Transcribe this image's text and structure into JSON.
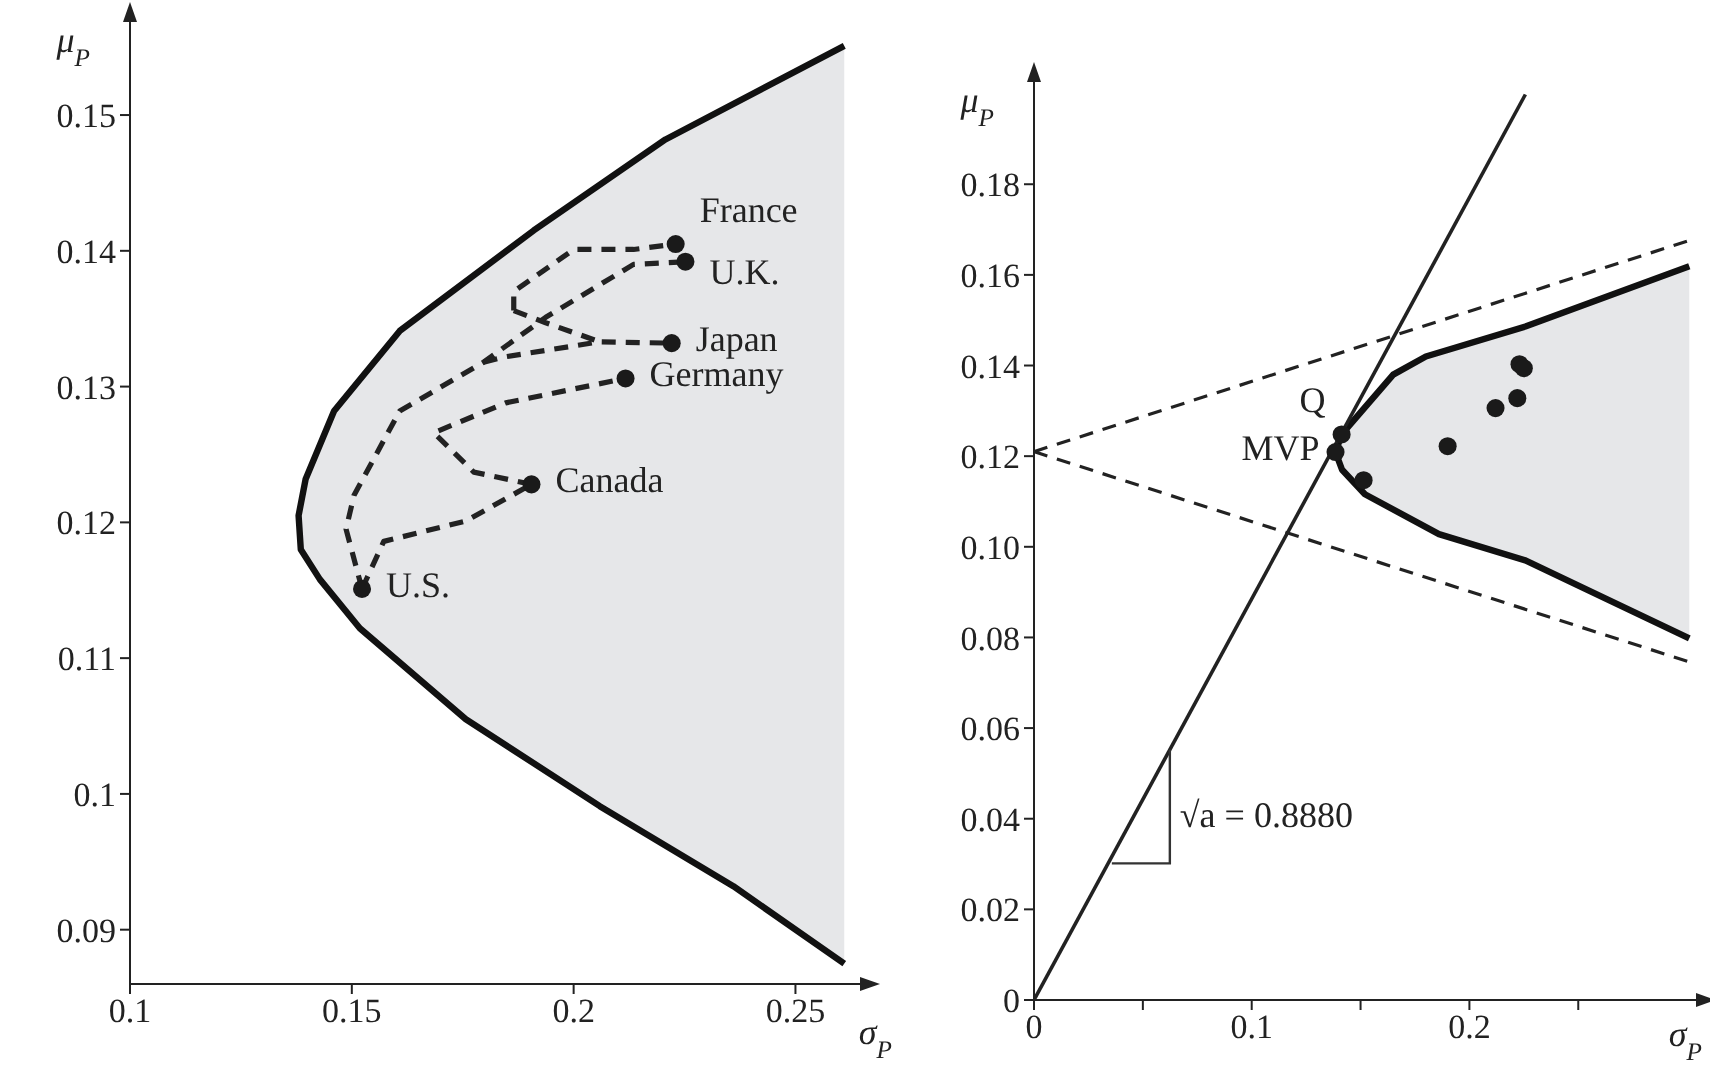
{
  "chart_data": [
    {
      "type": "line",
      "xlabel": "σ$_{P}$",
      "ylabel": "μ$_{P}$",
      "xlim": [
        0.1,
        0.265
      ],
      "ylim": [
        0.086,
        0.157
      ],
      "xticks": [
        0.1,
        0.15,
        0.2,
        0.25
      ],
      "yticks": [
        0.09,
        0.1,
        0.11,
        0.12,
        0.13,
        0.14,
        0.15
      ],
      "series": [
        {
          "type": "area",
          "color": "#e6e7e9",
          "x": [
            0.261,
            0.236,
            0.2059,
            0.1757,
            0.1518,
            0.1428,
            0.1385,
            0.138,
            0.1396,
            0.146,
            0.1608,
            0.191,
            0.2207,
            0.261
          ],
          "values": [
            0.0875,
            0.0932,
            0.0991,
            0.1055,
            0.1122,
            0.1158,
            0.118,
            0.1205,
            0.1232,
            0.1282,
            0.1341,
            0.1415,
            0.1482,
            0.1551
          ]
        },
        {
          "type": "line",
          "line_style": "dashed",
          "color": "#222222",
          "x": [
            0.1523,
            0.1572,
            0.1757,
            0.1905
          ],
          "values": [
            0.1151,
            0.1186,
            0.1201,
            0.1228
          ]
        },
        {
          "type": "line",
          "line_style": "dashed",
          "color": "#222222",
          "x": [
            0.1905,
            0.1775,
            0.1685,
            0.1847,
            0.2117
          ],
          "values": [
            0.1228,
            0.1237,
            0.1266,
            0.1288,
            0.1306
          ]
        },
        {
          "type": "line",
          "line_style": "dashed",
          "color": "#222222",
          "x": [
            0.1523,
            0.1487,
            0.1505,
            0.1608,
            0.1797,
            0.1937,
            0.2135,
            0.2252
          ],
          "values": [
            0.1151,
            0.1195,
            0.122,
            0.1282,
            0.1318,
            0.1351,
            0.139,
            0.1392
          ]
        },
        {
          "type": "line",
          "line_style": "dashed",
          "color": "#222222",
          "x": [
            0.1797,
            0.1847,
            0.2059,
            0.2221
          ],
          "values": [
            0.1318,
            0.1322,
            0.1333,
            0.1332
          ]
        },
        {
          "type": "line",
          "line_style": "dashed",
          "color": "#222222",
          "x": [
            0.1865,
            0.1865,
            0.2,
            0.2135,
            0.223
          ],
          "values": [
            0.1356,
            0.137,
            0.1401,
            0.1401,
            0.1405
          ]
        },
        {
          "type": "line",
          "line_style": "dashed",
          "color": "#222222",
          "x": [
            0.1865,
            0.1937,
            0.2059
          ],
          "values": [
            0.1356,
            0.1347,
            0.1333
          ]
        },
        {
          "type": "scatter",
          "marker": "circle",
          "color": "#1a1a1a",
          "x": [
            0.223,
            0.2252,
            0.2221,
            0.2117,
            0.1905,
            0.1523
          ],
          "values": [
            0.1405,
            0.1392,
            0.1332,
            0.1306,
            0.1228,
            0.1151
          ]
        }
      ],
      "annotations": [
        {
          "text": "France",
          "x": 0.223,
          "y": 0.1405
        },
        {
          "text": "U.K.",
          "x": 0.2252,
          "y": 0.1392
        },
        {
          "text": "Japan",
          "x": 0.2221,
          "y": 0.1332
        },
        {
          "text": "Germany",
          "x": 0.2117,
          "y": 0.1306
        },
        {
          "text": "Canada",
          "x": 0.1905,
          "y": 0.1228
        },
        {
          "text": "U.S.",
          "x": 0.1523,
          "y": 0.1151
        }
      ]
    },
    {
      "type": "line",
      "xlabel": "σ$_{P}$",
      "ylabel": "μ$_{P}$",
      "xlim": [
        0,
        0.305
      ],
      "ylim": [
        0,
        0.203
      ],
      "xticks": [
        0,
        {
          "value": 0.05,
          "label": null
        },
        0.1,
        {
          "value": 0.15,
          "label": null
        },
        0.2,
        {
          "value": 0.25,
          "label": null
        }
      ],
      "yticks": [
        0,
        0.02,
        0.04,
        0.06,
        0.08,
        {
          "value": 0.1,
          "label": "0.10"
        },
        0.12,
        0.14,
        0.16,
        0.18
      ],
      "series": [
        {
          "type": "area",
          "color": "#e6e7e9",
          "x": [
            0.301,
            0.2257,
            0.186,
            0.152,
            0.1415,
            0.1385,
            0.1413,
            0.165,
            0.18,
            0.2257,
            0.301
          ],
          "values": [
            0.0798,
            0.097,
            0.1028,
            0.1116,
            0.117,
            0.1209,
            0.1248,
            0.138,
            0.142,
            0.1486,
            0.1619
          ]
        },
        {
          "type": "line",
          "line_style": "dashed",
          "color": "#222222",
          "x": [
            0,
            0.301
          ],
          "values": [
            0.121,
            0.1676
          ]
        },
        {
          "type": "line",
          "line_style": "dashed",
          "color": "#222222",
          "x": [
            0,
            0.301
          ],
          "values": [
            0.121,
            0.0746
          ]
        },
        {
          "type": "line",
          "line_style": "solid",
          "color": "#222222",
          "x": [
            0,
            0.2257
          ],
          "values": [
            0,
            0.1998
          ]
        },
        {
          "type": "scatter",
          "marker": "circle",
          "color": "#1a1a1a",
          "x": [
            0.1385,
            0.1413,
            0.1514,
            0.19,
            0.212,
            0.222,
            0.223,
            0.225
          ],
          "values": [
            0.1209,
            0.1248,
            0.1147,
            0.1222,
            0.1306,
            0.1328,
            0.1403,
            0.1394
          ]
        }
      ],
      "annotations": [
        {
          "text": "Q",
          "x": 0.1413,
          "y": 0.1248
        },
        {
          "text": "MVP",
          "x": 0.1385,
          "y": 0.1209
        },
        {
          "text": "√a = 0.8880",
          "x": 0.0624,
          "y": 0.0553
        }
      ]
    }
  ]
}
